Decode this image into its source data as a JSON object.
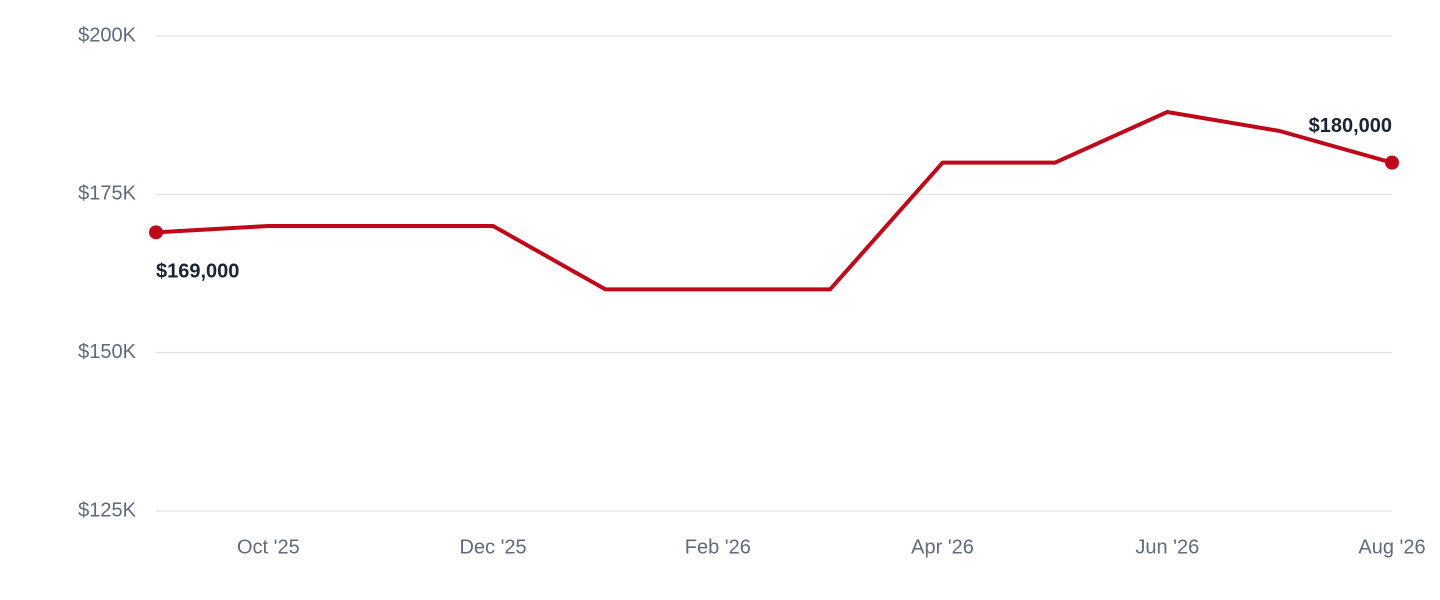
{
  "chart_data": {
    "type": "line",
    "categories": [
      null,
      "Oct '25",
      null,
      "Dec '25",
      null,
      "Feb '26",
      null,
      "Apr '26",
      null,
      "Jun '26",
      null,
      "Aug '26"
    ],
    "series": [
      {
        "color": "#c0081b",
        "values": [
          169000,
          170000,
          170000,
          170000,
          160000,
          160000,
          160000,
          180000,
          180000,
          188000,
          185000,
          180000
        ],
        "value_labels": [
          "$169,000",
          null,
          null,
          null,
          null,
          null,
          null,
          null,
          null,
          null,
          null,
          "$180,000"
        ]
      }
    ],
    "ylim": [
      125000,
      200000
    ],
    "yticks": [
      {
        "value": 125000,
        "label": "$125K"
      },
      {
        "value": 150000,
        "label": "$150K"
      },
      {
        "value": 175000,
        "label": "$175K"
      },
      {
        "value": 200000,
        "label": "$200K"
      }
    ],
    "grid": true
  }
}
